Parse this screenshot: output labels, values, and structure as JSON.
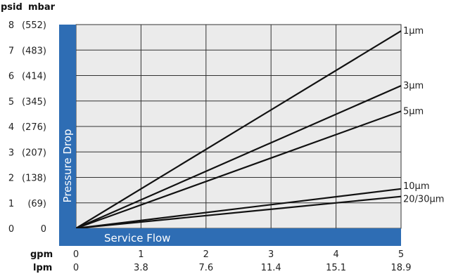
{
  "chart_data": {
    "type": "line",
    "title": "",
    "xlabel": "Service Flow",
    "ylabel": "Pressure Drop",
    "x_primary_unit": "gpm",
    "x_secondary_unit": "lpm",
    "y_primary_unit": "psid",
    "y_secondary_unit": "mbar",
    "xlim": [
      0,
      5
    ],
    "ylim": [
      0,
      8
    ],
    "x_ticks": [
      0,
      1,
      2,
      3,
      4,
      5
    ],
    "x_tick_labels": [
      "0",
      "1",
      "2",
      "3",
      "4",
      "5"
    ],
    "x_secondary_tick_labels": [
      "0",
      "3.8",
      "7.6",
      "11.4",
      "15.1",
      "18.9"
    ],
    "y_ticks": [
      0,
      1,
      2,
      3,
      4,
      5,
      6,
      7,
      8
    ],
    "y_tick_labels": [
      "0",
      "1",
      "2",
      "3",
      "4",
      "5",
      "6",
      "7",
      "8"
    ],
    "y_secondary_tick_labels": [
      "0",
      "(69)",
      "(138)",
      "(207)",
      "(276)",
      "(345)",
      "(414)",
      "(483)",
      "(552)"
    ],
    "grid": true,
    "plot_background": "#ebebeb",
    "axis_band_color": "#2e6db4",
    "series": [
      {
        "name": "1µm",
        "x": [
          0,
          5
        ],
        "y": [
          0,
          7.75
        ]
      },
      {
        "name": "3µm",
        "x": [
          0,
          5
        ],
        "y": [
          0,
          5.6
        ]
      },
      {
        "name": "5µm",
        "x": [
          0,
          5
        ],
        "y": [
          0,
          4.6
        ]
      },
      {
        "name": "10µm",
        "x": [
          0,
          5
        ],
        "y": [
          0,
          1.55
        ]
      },
      {
        "name": "20/30µm",
        "x": [
          0,
          5
        ],
        "y": [
          0,
          1.25
        ]
      }
    ]
  }
}
